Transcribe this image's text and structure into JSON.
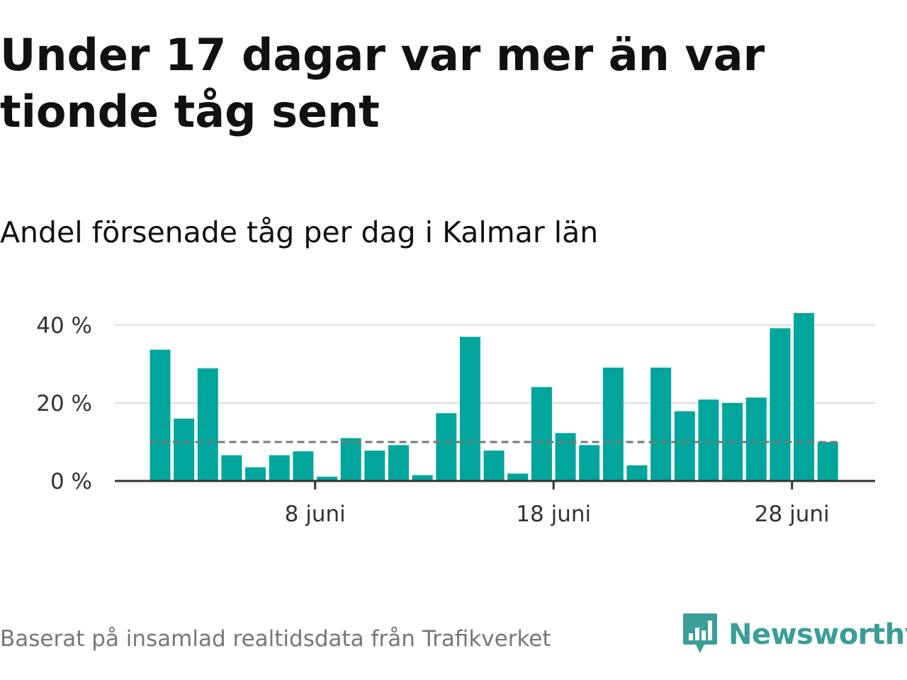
{
  "title": "Under 17 dagar var mer än var tionde tåg sent",
  "subtitle": "Andel försenade tåg per dag i Kalmar län",
  "footer": "Baserat på insamlad realtidsdata från Trafikverket",
  "logo": {
    "text": "Newsworthy",
    "icon": "newsworthy-bar-chart-icon"
  },
  "colors": {
    "bar": "#00a69c",
    "grid": "#dddddd",
    "axis": "#333333",
    "reference": "#777777",
    "brand": "#3a9e96"
  },
  "chart_data": {
    "type": "bar",
    "title": "",
    "xlabel": "",
    "ylabel": "",
    "x": [
      1,
      2,
      3,
      4,
      5,
      6,
      7,
      8,
      9,
      10,
      11,
      12,
      13,
      14,
      15,
      16,
      17,
      18,
      19,
      20,
      21,
      22,
      23,
      24,
      25,
      26,
      27,
      28,
      29
    ],
    "values": [
      33.7,
      16.0,
      28.9,
      6.6,
      3.5,
      6.6,
      7.6,
      1.1,
      11.0,
      7.8,
      9.2,
      1.5,
      17.4,
      37.0,
      7.8,
      1.9,
      24.1,
      12.3,
      9.2,
      29.1,
      4.0,
      29.1,
      17.9,
      20.9,
      20.0,
      21.4,
      39.2,
      43.1,
      10.0
    ],
    "xticks": [
      {
        "x": 8,
        "label": "8 juni"
      },
      {
        "x": 18,
        "label": "18 juni"
      },
      {
        "x": 28,
        "label": "28 juni"
      }
    ],
    "yticks": [
      {
        "value": 0,
        "label": "0 %"
      },
      {
        "value": 20,
        "label": "20 %"
      },
      {
        "value": 40,
        "label": "40 %"
      }
    ],
    "ylim": [
      0,
      44
    ],
    "reference_line": 10,
    "grid": true
  }
}
